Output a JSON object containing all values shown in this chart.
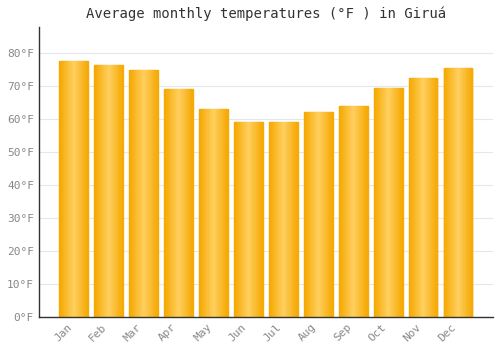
{
  "title": "Average monthly temperatures (°F ) in Giruá",
  "months": [
    "Jan",
    "Feb",
    "Mar",
    "Apr",
    "May",
    "Jun",
    "Jul",
    "Aug",
    "Sep",
    "Oct",
    "Nov",
    "Dec"
  ],
  "values": [
    77.5,
    76.5,
    75.0,
    69.0,
    63.0,
    59.0,
    59.0,
    62.0,
    64.0,
    69.5,
    72.5,
    75.5
  ],
  "bar_color_dark": "#F5A800",
  "bar_color_light": "#FFD060",
  "background_color": "#FFFFFF",
  "grid_color": "#E0E8F0",
  "ylim": [
    0,
    88
  ],
  "yticks": [
    0,
    10,
    20,
    30,
    40,
    50,
    60,
    70,
    80
  ],
  "title_fontsize": 10,
  "tick_fontsize": 8,
  "bar_width": 0.82
}
